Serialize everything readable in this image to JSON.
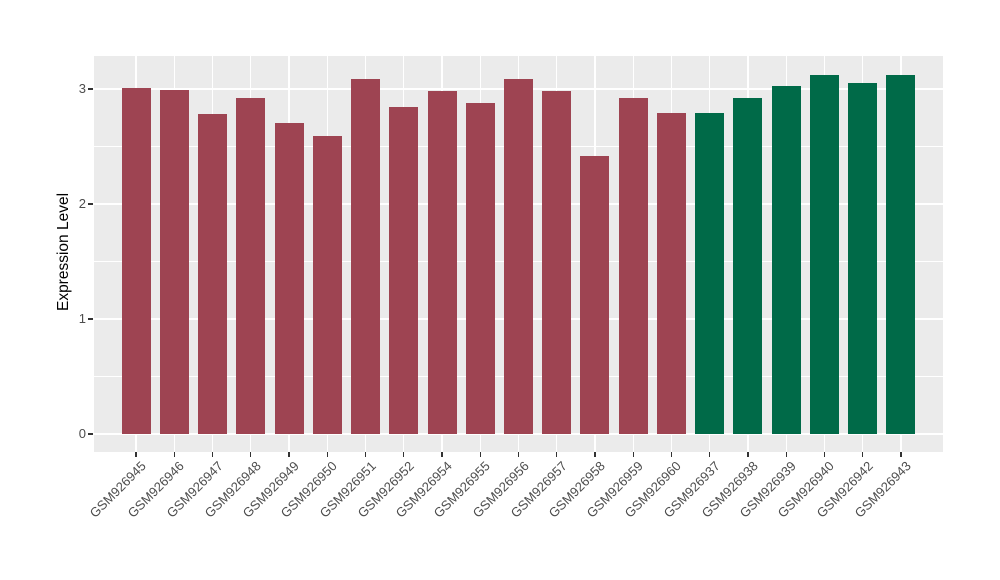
{
  "chart_data": {
    "type": "bar",
    "title": "",
    "xlabel": "",
    "ylabel": "Expression Level",
    "categories": [
      "GSM926945",
      "GSM926946",
      "GSM926947",
      "GSM926948",
      "GSM926949",
      "GSM926950",
      "GSM926951",
      "GSM926952",
      "GSM926954",
      "GSM926955",
      "GSM926956",
      "GSM926957",
      "GSM926958",
      "GSM926959",
      "GSM926960",
      "GSM926937",
      "GSM926938",
      "GSM926939",
      "GSM926940",
      "GSM926942",
      "GSM926943"
    ],
    "values": [
      3.01,
      2.99,
      2.78,
      2.92,
      2.7,
      2.59,
      3.09,
      2.84,
      2.98,
      2.88,
      3.09,
      2.98,
      2.42,
      2.92,
      2.79,
      2.79,
      2.92,
      3.03,
      3.12,
      3.05,
      3.12
    ],
    "groups": [
      "r",
      "r",
      "r",
      "r",
      "r",
      "r",
      "r",
      "r",
      "r",
      "r",
      "r",
      "r",
      "r",
      "r",
      "r",
      "g",
      "g",
      "g",
      "g",
      "g",
      "g"
    ],
    "palette": {
      "r": "#9E4452",
      "g": "#006A48"
    },
    "yticks": [
      0,
      1,
      2,
      3
    ],
    "ytick_labels": [
      "0",
      "1",
      "2",
      "3"
    ],
    "minor_yticks": [
      0.5,
      1.5,
      2.5
    ],
    "ylim": [
      0,
      3.3
    ],
    "x_tick_angle": 45,
    "grid": "on",
    "legend_position": "none"
  },
  "style": {
    "page_background": "#FFFFFF",
    "panel_background": "#EBEBEB",
    "grid_color": "#FFFFFF",
    "axis_text_color": "#4D4D4D",
    "axis_title_color": "#000000",
    "tick_mark_color": "#333333"
  }
}
